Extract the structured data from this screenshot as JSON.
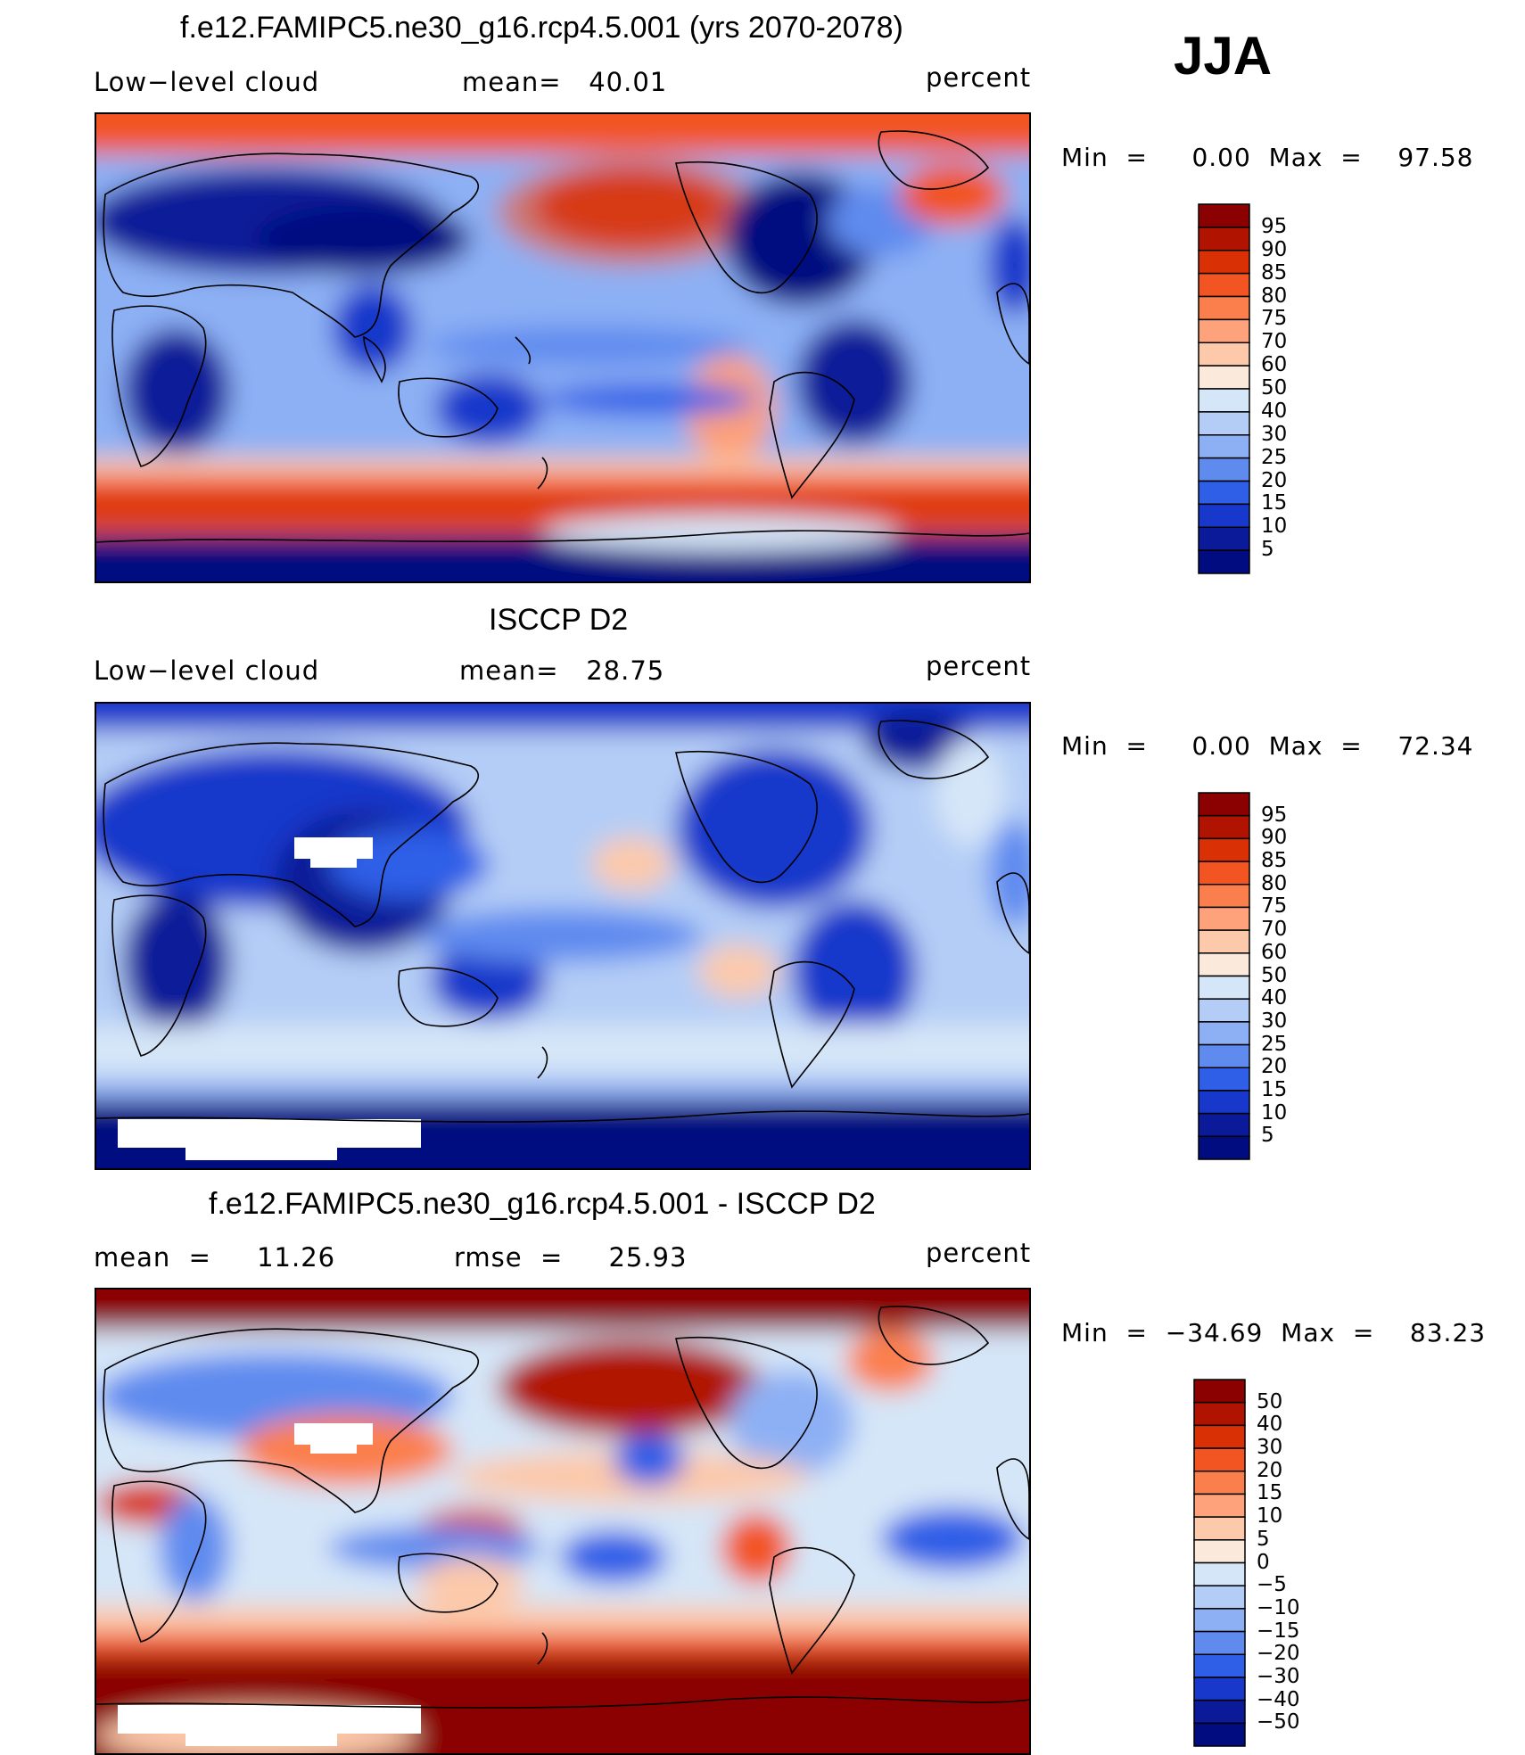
{
  "season": "JJA",
  "chart_data": [
    {
      "type": "heatmap",
      "title": "f.e12.FAMIPC5.ne30_g16.rcp4.5.001 (yrs 2070-2078)",
      "variable": "Low−level cloud",
      "stat_text": "mean=   40.01",
      "mean": 40.01,
      "units": "percent",
      "min_text": "Min  =     0.00  Max  =    97.58",
      "min": 0.0,
      "max": 97.58,
      "colorbar_levels": [
        "95",
        "90",
        "85",
        "80",
        "75",
        "70",
        "60",
        "50",
        "40",
        "30",
        "25",
        "20",
        "15",
        "10",
        "5"
      ],
      "colorbar_colors": [
        "#8b0000",
        "#b01400",
        "#d93005",
        "#f25522",
        "#fb7f4d",
        "#fda27b",
        "#fcc9aa",
        "#fbe9dc",
        "#d5e6f8",
        "#b4cdf6",
        "#8db0f4",
        "#5f8bef",
        "#2f5ee7",
        "#1738cb",
        "#0a1a98",
        "#000c80"
      ],
      "grid": false
    },
    {
      "type": "heatmap",
      "title": "ISCCP D2",
      "variable": "Low−level cloud",
      "stat_text": "mean=   28.75",
      "mean": 28.75,
      "units": "percent",
      "min_text": "Min  =     0.00  Max  =    72.34",
      "min": 0.0,
      "max": 72.34,
      "colorbar_levels": [
        "95",
        "90",
        "85",
        "80",
        "75",
        "70",
        "60",
        "50",
        "40",
        "30",
        "25",
        "20",
        "15",
        "10",
        "5"
      ],
      "colorbar_colors": [
        "#8b0000",
        "#b01400",
        "#d93005",
        "#f25522",
        "#fb7f4d",
        "#fda27b",
        "#fcc9aa",
        "#fbe9dc",
        "#d5e6f8",
        "#b4cdf6",
        "#8db0f4",
        "#5f8bef",
        "#2f5ee7",
        "#1738cb",
        "#0a1a98",
        "#000c80"
      ],
      "grid": false
    },
    {
      "type": "heatmap",
      "title": "f.e12.FAMIPC5.ne30_g16.rcp4.5.001 - ISCCP D2",
      "stat_text": "mean  =     11.26",
      "stat2_text": "rmse  =     25.93",
      "mean": 11.26,
      "rmse": 25.93,
      "units": "percent",
      "min_text": "Min  =  −34.69  Max  =    83.23",
      "min": -34.69,
      "max": 83.23,
      "colorbar_levels": [
        "50",
        "40",
        "30",
        "20",
        "15",
        "10",
        "5",
        "0",
        "−5",
        "−10",
        "−15",
        "−20",
        "−30",
        "−40",
        "−50"
      ],
      "colorbar_colors": [
        "#8b0000",
        "#b01400",
        "#d93005",
        "#f25522",
        "#fb7f4d",
        "#fda27b",
        "#fcc9aa",
        "#fbe9dc",
        "#d5e6f8",
        "#b4cdf6",
        "#8db0f4",
        "#5f8bef",
        "#2f5ee7",
        "#1738cb",
        "#0a1a98",
        "#000c80"
      ],
      "grid": false
    }
  ]
}
